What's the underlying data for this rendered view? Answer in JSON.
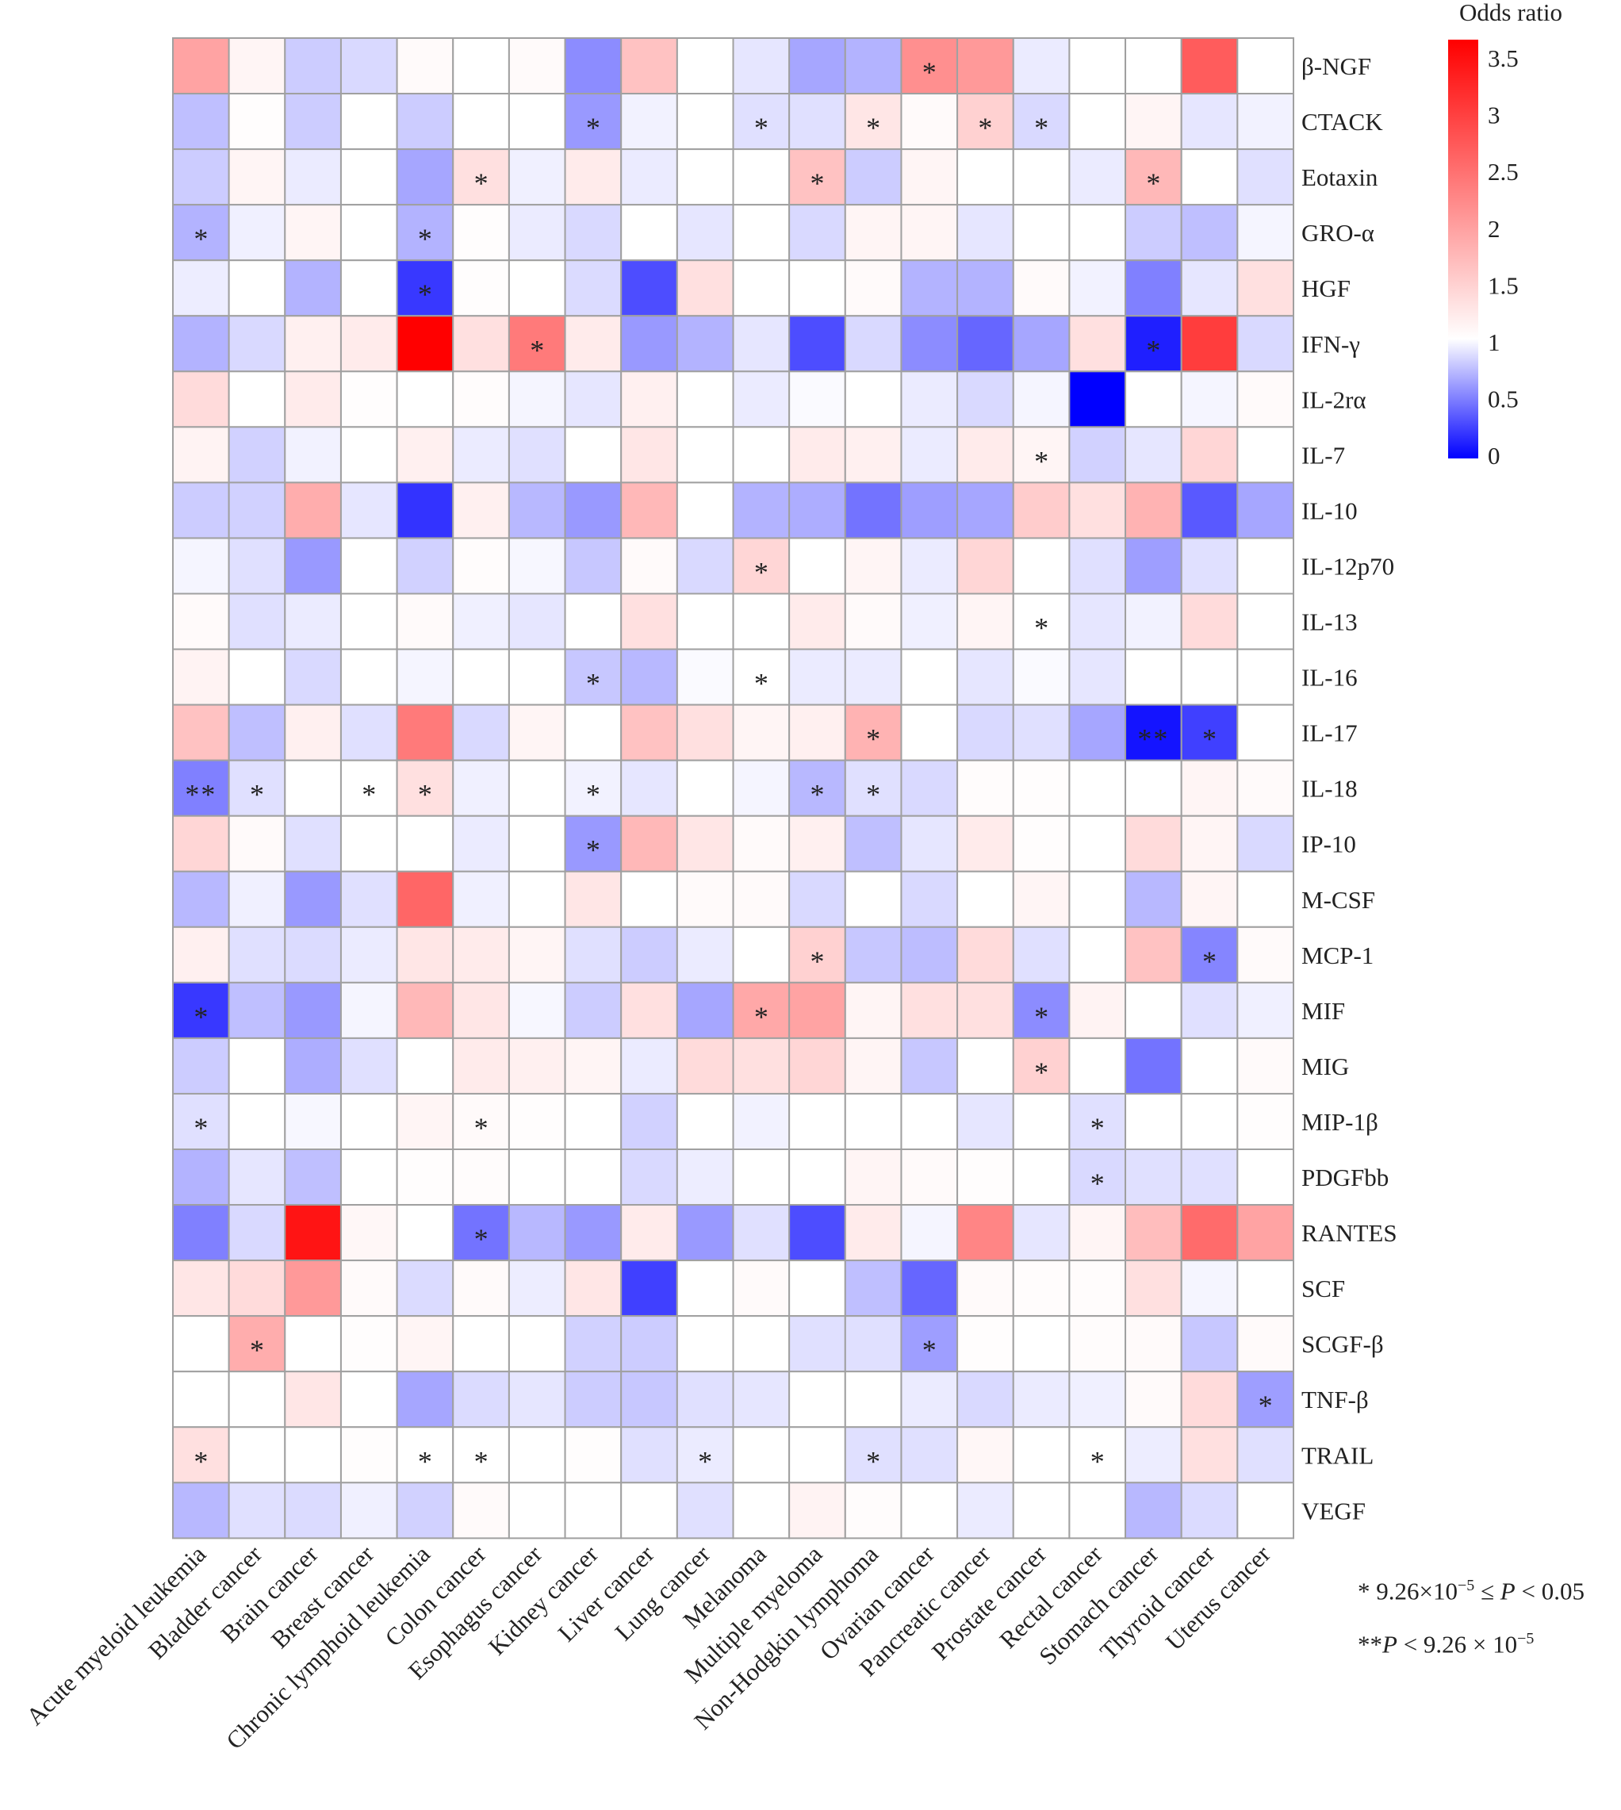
{
  "chart_data": {
    "type": "heatmap",
    "title": "",
    "xlabel": "",
    "ylabel": "",
    "legend_title": "Odds ratio",
    "color_range": [
      0,
      3.5
    ],
    "color_midpoint": 1,
    "colors": {
      "low": "#0000ff",
      "mid": "#ffffff",
      "high": "#ff0000",
      "grid": "#a0a0a0",
      "text": "#222222"
    },
    "legend_ticks": [
      "3.5",
      "3",
      "2.5",
      "2",
      "1.5",
      "1",
      "0.5",
      "0"
    ],
    "x_categories": [
      "Acute myeloid leukemia",
      "Bladder cancer",
      "Brain cancer",
      "Breast cancer",
      "Chronic lymphoid leukemia",
      "Colon cancer",
      "Esophagus cancer",
      "Kidney cancer",
      "Liver cancer",
      "Lung cancer",
      "Melanoma",
      "Multiple myeloma",
      "Non-Hodgkin lymphoma",
      "Ovarian cancer",
      "Pancreatic cancer",
      "Prostate cancer",
      "Rectal cancer",
      "Stomach cancer",
      "Thyroid cancer",
      "Uterus cancer"
    ],
    "y_categories": [
      "β-NGF",
      "CTACK",
      "Eotaxin",
      "GRO-α",
      "HGF",
      "IFN-γ",
      "IL-2rα",
      "IL-7",
      "IL-10",
      "IL-12p70",
      "IL-13",
      "IL-16",
      "IL-17",
      "IL-18",
      "IP-10",
      "M-CSF",
      "MCP-1",
      "MIF",
      "MIG",
      "MIP-1β",
      "PDGFbb",
      "RANTES",
      "SCF",
      "SCGF-β",
      "TNF-β",
      "TRAIL",
      "VEGF"
    ],
    "values": [
      [
        1.9,
        1.1,
        0.8,
        0.85,
        1.05,
        1.0,
        1.05,
        0.55,
        1.6,
        1.0,
        0.9,
        0.65,
        0.7,
        2.1,
        2.0,
        0.92,
        1.0,
        1.0,
        2.6,
        1.0
      ],
      [
        0.75,
        1.02,
        0.8,
        1.0,
        0.8,
        1.0,
        1.0,
        0.6,
        0.95,
        1.0,
        0.88,
        0.88,
        1.25,
        1.05,
        1.45,
        0.85,
        1.0,
        1.1,
        0.9,
        0.95
      ],
      [
        0.8,
        1.1,
        0.92,
        1.0,
        0.65,
        1.3,
        0.94,
        1.2,
        0.92,
        1.0,
        1.0,
        1.6,
        0.8,
        1.1,
        1.0,
        1.0,
        0.92,
        1.7,
        1.0,
        0.88
      ],
      [
        0.7,
        0.94,
        1.1,
        1.0,
        0.7,
        1.02,
        0.92,
        0.85,
        1.0,
        0.9,
        1.0,
        0.85,
        1.1,
        1.1,
        0.9,
        1.0,
        1.0,
        0.8,
        0.75,
        0.96
      ],
      [
        0.93,
        1.0,
        0.7,
        1.0,
        0.22,
        1.02,
        1.0,
        0.86,
        0.3,
        1.3,
        1.0,
        1.0,
        1.05,
        0.7,
        0.7,
        1.05,
        0.95,
        0.5,
        0.9,
        1.3
      ],
      [
        0.7,
        0.85,
        1.15,
        1.2,
        3.5,
        1.3,
        2.3,
        1.2,
        0.6,
        0.7,
        0.9,
        0.3,
        0.85,
        0.55,
        0.4,
        0.65,
        1.3,
        0.12,
        2.9,
        0.85
      ],
      [
        1.35,
        1.0,
        1.2,
        1.02,
        1.0,
        1.03,
        0.96,
        0.9,
        1.15,
        1.0,
        0.92,
        0.98,
        1.0,
        0.92,
        0.85,
        0.96,
        0.0,
        1.0,
        0.96,
        1.05
      ],
      [
        1.12,
        0.82,
        0.95,
        1.0,
        1.15,
        0.92,
        0.88,
        1.0,
        1.25,
        1.0,
        1.0,
        1.2,
        1.15,
        0.92,
        1.2,
        1.1,
        0.82,
        0.9,
        1.4,
        1.0
      ],
      [
        0.8,
        0.82,
        1.8,
        0.9,
        0.2,
        1.15,
        0.72,
        0.6,
        1.7,
        1.0,
        0.7,
        0.68,
        0.45,
        0.62,
        0.65,
        1.5,
        1.3,
        1.75,
        0.35,
        0.65
      ],
      [
        0.96,
        0.88,
        0.6,
        1.0,
        0.82,
        1.03,
        0.97,
        0.78,
        1.05,
        0.85,
        1.4,
        1.0,
        1.1,
        0.92,
        1.4,
        1.0,
        0.88,
        0.62,
        0.88,
        1.0
      ],
      [
        1.05,
        0.88,
        0.92,
        1.0,
        1.05,
        0.94,
        0.9,
        1.0,
        1.3,
        1.0,
        1.0,
        1.2,
        1.05,
        0.94,
        1.1,
        1.0,
        0.9,
        0.95,
        1.35,
        1.0
      ],
      [
        1.12,
        1.0,
        0.85,
        1.0,
        0.96,
        1.0,
        1.0,
        0.78,
        0.72,
        0.98,
        1.0,
        0.92,
        0.92,
        1.0,
        0.9,
        0.98,
        0.9,
        1.0,
        1.0,
        1.0
      ],
      [
        1.6,
        0.75,
        1.15,
        0.88,
        2.3,
        0.85,
        1.1,
        1.0,
        1.6,
        1.3,
        1.1,
        1.15,
        1.75,
        1.0,
        0.85,
        0.88,
        0.65,
        0.08,
        0.25,
        1.0
      ],
      [
        0.5,
        0.88,
        1.0,
        1.0,
        1.3,
        0.94,
        1.0,
        0.95,
        0.9,
        1.0,
        0.96,
        0.72,
        0.88,
        0.85,
        1.03,
        1.02,
        1.0,
        1.0,
        1.1,
        1.05
      ],
      [
        1.4,
        1.05,
        0.88,
        1.0,
        1.0,
        0.92,
        1.0,
        0.6,
        1.7,
        1.25,
        1.05,
        1.15,
        0.75,
        0.9,
        1.2,
        1.02,
        1.0,
        1.35,
        1.1,
        0.85
      ],
      [
        0.72,
        0.94,
        0.6,
        0.88,
        2.5,
        0.94,
        1.0,
        1.25,
        1.0,
        1.05,
        1.05,
        0.85,
        1.0,
        0.85,
        1.0,
        1.1,
        1.0,
        0.72,
        1.1,
        1.0
      ],
      [
        1.15,
        0.88,
        0.86,
        0.92,
        1.25,
        1.2,
        1.1,
        0.88,
        0.8,
        0.92,
        1.0,
        1.45,
        0.78,
        0.74,
        1.35,
        0.88,
        1.0,
        1.6,
        0.52,
        1.05
      ],
      [
        0.22,
        0.75,
        0.6,
        0.96,
        1.7,
        1.25,
        0.97,
        0.8,
        1.3,
        0.65,
        1.85,
        1.9,
        1.1,
        1.3,
        1.3,
        0.55,
        1.12,
        1.0,
        0.88,
        0.94
      ],
      [
        0.8,
        1.0,
        0.68,
        0.88,
        1.0,
        1.2,
        1.15,
        1.1,
        0.92,
        1.35,
        1.3,
        1.4,
        1.1,
        0.78,
        1.0,
        1.45,
        1.0,
        0.45,
        1.0,
        1.05
      ],
      [
        0.88,
        1.0,
        0.97,
        1.0,
        1.1,
        1.05,
        1.02,
        1.0,
        0.82,
        1.0,
        0.95,
        1.0,
        1.0,
        1.0,
        0.9,
        1.0,
        0.88,
        1.0,
        1.0,
        1.02
      ],
      [
        0.7,
        0.9,
        0.75,
        1.0,
        1.02,
        1.03,
        1.0,
        1.0,
        0.85,
        0.93,
        1.0,
        1.0,
        1.1,
        1.05,
        1.02,
        1.0,
        0.85,
        0.88,
        0.88,
        1.0
      ],
      [
        0.5,
        0.85,
        3.3,
        1.08,
        1.0,
        0.45,
        0.72,
        0.6,
        1.2,
        0.6,
        0.88,
        0.3,
        1.2,
        0.96,
        2.2,
        0.9,
        1.1,
        1.65,
        2.45,
        1.9
      ],
      [
        1.25,
        1.35,
        2.0,
        1.05,
        0.86,
        1.05,
        0.93,
        1.25,
        0.25,
        1.0,
        1.05,
        1.0,
        0.75,
        0.4,
        1.05,
        1.03,
        1.03,
        1.3,
        0.96,
        1.0
      ],
      [
        1.0,
        1.8,
        1.0,
        1.02,
        1.1,
        1.0,
        1.0,
        0.82,
        0.8,
        1.0,
        1.0,
        0.88,
        0.88,
        0.62,
        1.02,
        1.0,
        1.03,
        1.05,
        0.78,
        1.05
      ],
      [
        1.0,
        1.0,
        1.25,
        1.0,
        0.65,
        0.86,
        0.9,
        0.8,
        0.78,
        0.88,
        0.9,
        1.0,
        1.0,
        0.92,
        0.85,
        0.92,
        0.94,
        1.05,
        1.35,
        0.62
      ],
      [
        1.3,
        1.0,
        1.0,
        1.02,
        1.0,
        1.0,
        1.0,
        1.02,
        0.88,
        0.92,
        1.0,
        1.0,
        0.88,
        0.88,
        1.08,
        1.0,
        1.0,
        0.93,
        1.3,
        0.88
      ],
      [
        0.72,
        0.88,
        0.86,
        0.94,
        0.82,
        1.05,
        1.0,
        1.0,
        1.0,
        0.88,
        1.0,
        1.12,
        1.03,
        1.0,
        0.92,
        1.0,
        1.0,
        0.72,
        0.86,
        1.0
      ]
    ],
    "significance": [
      [
        "",
        "",
        "",
        "",
        "",
        "",
        "",
        "",
        "",
        "",
        "",
        "",
        "",
        "*",
        "",
        "",
        "",
        "",
        "",
        ""
      ],
      [
        "",
        "",
        "",
        "",
        "",
        "",
        "",
        "*",
        "",
        "",
        "*",
        "",
        "*",
        "",
        "*",
        "*",
        "",
        "",
        "",
        ""
      ],
      [
        "",
        "",
        "",
        "",
        "",
        "*",
        "",
        "",
        "",
        "",
        "",
        "*",
        "",
        "",
        "",
        "",
        "",
        "*",
        "",
        ""
      ],
      [
        "*",
        "",
        "",
        "",
        "*",
        "",
        "",
        "",
        "",
        "",
        "",
        "",
        "",
        "",
        "",
        "",
        "",
        "",
        "",
        ""
      ],
      [
        "",
        "",
        "",
        "",
        "*",
        "",
        "",
        "",
        "",
        "",
        "",
        "",
        "",
        "",
        "",
        "",
        "",
        "",
        "",
        ""
      ],
      [
        "",
        "",
        "",
        "",
        "",
        "",
        "*",
        "",
        "",
        "",
        "",
        "",
        "",
        "",
        "",
        "",
        "",
        "*",
        "",
        ""
      ],
      [
        "",
        "",
        "",
        "",
        "",
        "",
        "",
        "",
        "",
        "",
        "",
        "",
        "",
        "",
        "",
        "",
        "",
        "",
        "",
        ""
      ],
      [
        "",
        "",
        "",
        "",
        "",
        "",
        "",
        "",
        "",
        "",
        "",
        "",
        "",
        "",
        "",
        "*",
        "",
        "",
        "",
        ""
      ],
      [
        "",
        "",
        "",
        "",
        "",
        "",
        "",
        "",
        "",
        "",
        "",
        "",
        "",
        "",
        "",
        "",
        "",
        "",
        "",
        ""
      ],
      [
        "",
        "",
        "",
        "",
        "",
        "",
        "",
        "",
        "",
        "",
        "*",
        "",
        "",
        "",
        "",
        "",
        "",
        "",
        "",
        ""
      ],
      [
        "",
        "",
        "",
        "",
        "",
        "",
        "",
        "",
        "",
        "",
        "",
        "",
        "",
        "",
        "",
        "*",
        "",
        "",
        "",
        ""
      ],
      [
        "",
        "",
        "",
        "",
        "",
        "",
        "",
        "*",
        "",
        "",
        "*",
        "",
        "",
        "",
        "",
        "",
        "",
        "",
        "",
        ""
      ],
      [
        "",
        "",
        "",
        "",
        "",
        "",
        "",
        "",
        "",
        "",
        "",
        "",
        "*",
        "",
        "",
        "",
        "",
        "**",
        "*",
        ""
      ],
      [
        "**",
        "*",
        "",
        "*",
        "*",
        "",
        "",
        "*",
        "",
        "",
        "",
        "*",
        "*",
        "",
        "",
        "",
        "",
        "",
        "",
        ""
      ],
      [
        "",
        "",
        "",
        "",
        "",
        "",
        "",
        "*",
        "",
        "",
        "",
        "",
        "",
        "",
        "",
        "",
        "",
        "",
        "",
        ""
      ],
      [
        "",
        "",
        "",
        "",
        "",
        "",
        "",
        "",
        "",
        "",
        "",
        "",
        "",
        "",
        "",
        "",
        "",
        "",
        "",
        ""
      ],
      [
        "",
        "",
        "",
        "",
        "",
        "",
        "",
        "",
        "",
        "",
        "",
        "*",
        "",
        "",
        "",
        "",
        "",
        "",
        "*",
        ""
      ],
      [
        "*",
        "",
        "",
        "",
        "",
        "",
        "",
        "",
        "",
        "",
        "*",
        "",
        "",
        "",
        "",
        "*",
        "",
        "",
        "",
        ""
      ],
      [
        "",
        "",
        "",
        "",
        "",
        "",
        "",
        "",
        "",
        "",
        "",
        "",
        "",
        "",
        "",
        "*",
        "",
        "",
        "",
        ""
      ],
      [
        "*",
        "",
        "",
        "",
        "",
        "*",
        "",
        "",
        "",
        "",
        "",
        "",
        "",
        "",
        "",
        "",
        "*",
        "",
        "",
        ""
      ],
      [
        "",
        "",
        "",
        "",
        "",
        "",
        "",
        "",
        "",
        "",
        "",
        "",
        "",
        "",
        "",
        "",
        "*",
        "",
        "",
        ""
      ],
      [
        "",
        "",
        "",
        "",
        "",
        "*",
        "",
        "",
        "",
        "",
        "",
        "",
        "",
        "",
        "",
        "",
        "",
        "",
        "",
        ""
      ],
      [
        "",
        "",
        "",
        "",
        "",
        "",
        "",
        "",
        "",
        "",
        "",
        "",
        "",
        "",
        "",
        "",
        "",
        "",
        "",
        ""
      ],
      [
        "",
        "*",
        "",
        "",
        "",
        "",
        "",
        "",
        "",
        "",
        "",
        "",
        "",
        "*",
        "",
        "",
        "",
        "",
        "",
        ""
      ],
      [
        "",
        "",
        "",
        "",
        "",
        "",
        "",
        "",
        "",
        "",
        "",
        "",
        "",
        "",
        "",
        "",
        "",
        "",
        "",
        "*"
      ],
      [
        "*",
        "",
        "",
        "",
        "*",
        "*",
        "",
        "",
        "",
        "*",
        "",
        "",
        "*",
        "",
        "",
        "",
        "*",
        "",
        "",
        ""
      ],
      [
        "",
        "",
        "",
        "",
        "",
        "",
        "",
        "",
        "",
        "",
        "",
        "",
        "",
        "",
        "",
        "",
        "",
        "",
        "",
        ""
      ]
    ]
  }
}
